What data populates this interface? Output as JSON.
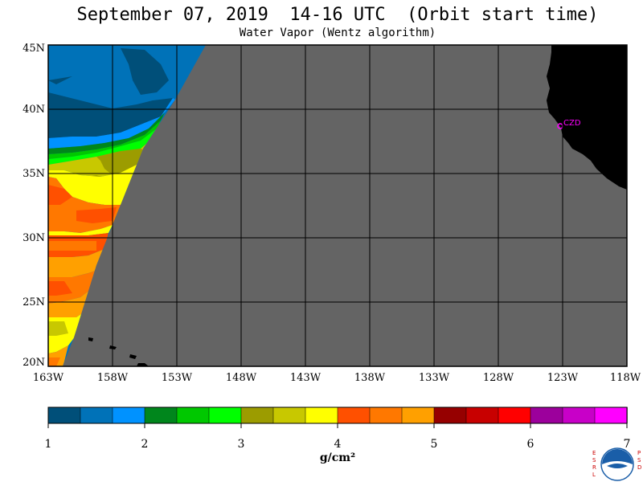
{
  "title": "September 07, 2019  14-16 UTC  (Orbit start time)",
  "subtitle": "Water Vapor (Wentz algorithm)",
  "lat_ticks": [
    "45N",
    "40N",
    "35N",
    "30N",
    "25N",
    "20N"
  ],
  "lon_ticks": [
    "163W",
    "158W",
    "153W",
    "148W",
    "143W",
    "138W",
    "133W",
    "128W",
    "123W",
    "118W"
  ],
  "station_label": "CZD",
  "colorbar": {
    "colors": [
      "#004f79",
      "#0072b8",
      "#0092ff",
      "#00861c",
      "#00c800",
      "#00ff00",
      "#9c9c00",
      "#c8c800",
      "#ffff00",
      "#ff5000",
      "#ff7800",
      "#ffa000",
      "#960000",
      "#c80000",
      "#ff0000",
      "#9c009c",
      "#c800c8",
      "#ff00ff"
    ],
    "tick_labels": [
      "1",
      "2",
      "3",
      "4",
      "5",
      "6",
      "7"
    ],
    "units": "g/cm²"
  },
  "logo": {
    "left_text": "ESRL",
    "right_text": "PSD",
    "center_text": "NOAA"
  },
  "colors": {
    "no_data": "#646464",
    "land": "#000000",
    "grid": "#000000",
    "station": "#ff00ff"
  }
}
